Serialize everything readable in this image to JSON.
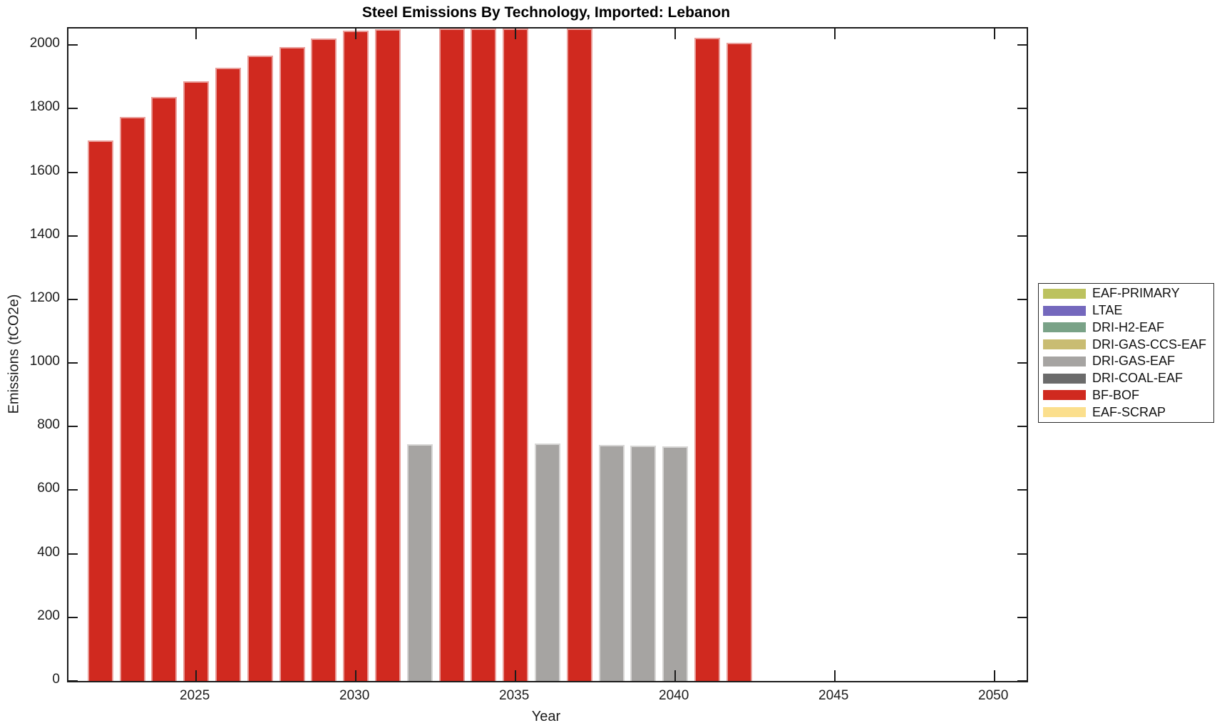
{
  "figure": {
    "background": "#ffffff",
    "axis_color": "#1c1c1c"
  },
  "chart_data": {
    "type": "bar",
    "title": "Steel Emissions By Technology, Imported: Lebanon",
    "xlabel": "Year",
    "ylabel": "Emissions (tCO2e)",
    "xlim": [
      2021,
      2051
    ],
    "ylim": [
      0,
      2052
    ],
    "x_ticks": [
      2025,
      2030,
      2035,
      2040,
      2045,
      2050
    ],
    "y_ticks": [
      0,
      200,
      400,
      600,
      800,
      1000,
      1200,
      1400,
      1600,
      1800,
      2000
    ],
    "grid": false,
    "legend_position": "outside-right",
    "bar_width_fraction": 0.8,
    "legend": [
      {
        "label": "EAF-PRIMARY",
        "color": "#bcc25f"
      },
      {
        "label": "LTAE",
        "color": "#7468bd"
      },
      {
        "label": "DRI-H2-EAF",
        "color": "#79a287"
      },
      {
        "label": "DRI-GAS-CCS-EAF",
        "color": "#c9bc72"
      },
      {
        "label": "DRI-GAS-EAF",
        "color": "#a6a4a2"
      },
      {
        "label": "DRI-COAL-EAF",
        "color": "#6b6b6b"
      },
      {
        "label": "BF-BOF",
        "color": "#d0291f"
      },
      {
        "label": "EAF-SCRAP",
        "color": "#fbdf8d"
      }
    ],
    "bars": [
      {
        "year": 2022,
        "series": "BF-BOF",
        "value": 1700
      },
      {
        "year": 2023,
        "series": "BF-BOF",
        "value": 1773
      },
      {
        "year": 2024,
        "series": "BF-BOF",
        "value": 1837
      },
      {
        "year": 2025,
        "series": "BF-BOF",
        "value": 1886
      },
      {
        "year": 2026,
        "series": "BF-BOF",
        "value": 1929
      },
      {
        "year": 2027,
        "series": "BF-BOF",
        "value": 1966
      },
      {
        "year": 2028,
        "series": "BF-BOF",
        "value": 1994
      },
      {
        "year": 2029,
        "series": "BF-BOF",
        "value": 2021
      },
      {
        "year": 2030,
        "series": "BF-BOF",
        "value": 2045
      },
      {
        "year": 2031,
        "series": "BF-BOF",
        "value": 2050
      },
      {
        "year": 2032,
        "series": "DRI-GAS-EAF",
        "value": 745
      },
      {
        "year": 2033,
        "series": "BF-BOF",
        "value": 2052
      },
      {
        "year": 2034,
        "series": "BF-BOF",
        "value": 2052
      },
      {
        "year": 2035,
        "series": "BF-BOF",
        "value": 2052
      },
      {
        "year": 2036,
        "series": "DRI-GAS-EAF",
        "value": 746
      },
      {
        "year": 2037,
        "series": "BF-BOF",
        "value": 2052
      },
      {
        "year": 2038,
        "series": "DRI-GAS-EAF",
        "value": 742
      },
      {
        "year": 2039,
        "series": "DRI-GAS-EAF",
        "value": 740
      },
      {
        "year": 2040,
        "series": "DRI-GAS-EAF",
        "value": 737
      },
      {
        "year": 2041,
        "series": "BF-BOF",
        "value": 2024
      },
      {
        "year": 2042,
        "series": "BF-BOF",
        "value": 2007
      }
    ],
    "note": "Bars for 2033-2035 and 2037 reach the top of the y-axis (clipped at axis maximum)."
  }
}
